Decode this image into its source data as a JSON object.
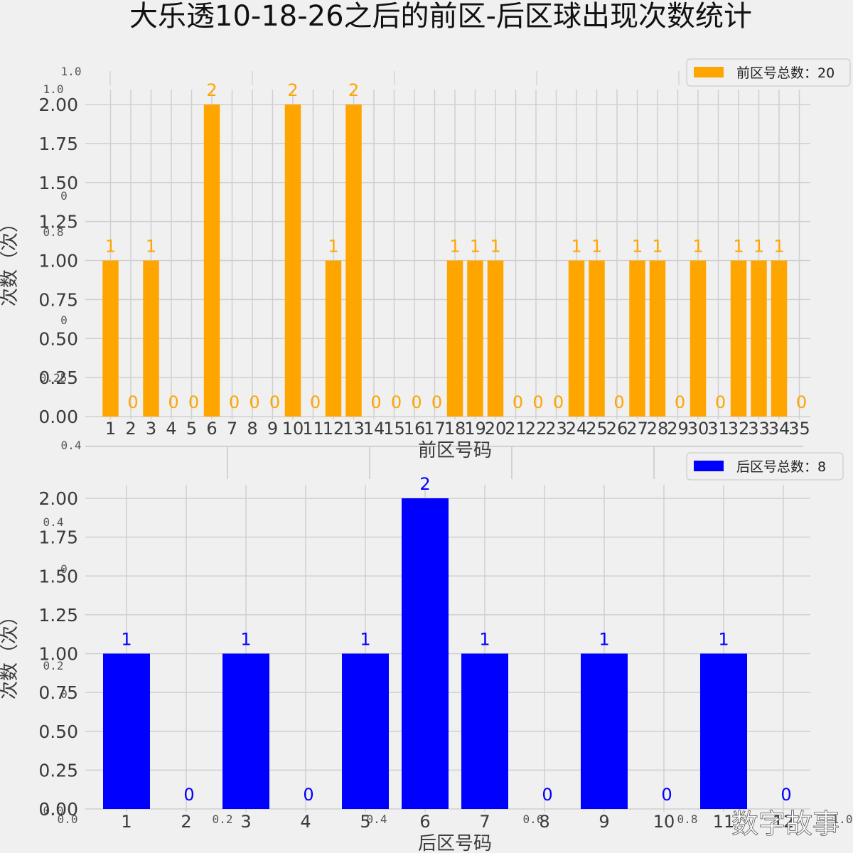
{
  "title": "大乐透10-18-26之后的前区-后区球出现次数统计",
  "watermark": "数字故事",
  "ghost_ticks": {
    "top": [
      "1.0",
      "1.0",
      "0",
      "0.8",
      "0",
      "0.25",
      "0.4"
    ],
    "bottom": [
      "0.4",
      "0",
      "0.2",
      "0",
      "0.0",
      "0.0",
      "0.2",
      "0.4",
      "0.6",
      "0.8",
      "1.0"
    ]
  },
  "chart_data": [
    {
      "type": "bar",
      "color": "#FFA500",
      "xlabel": "前区号码",
      "ylabel": "次数（次）",
      "ylim": [
        0,
        2.0
      ],
      "yticks": [
        "0.00",
        "0.25",
        "0.50",
        "0.75",
        "1.00",
        "1.25",
        "1.50",
        "1.75",
        "2.00"
      ],
      "legend": "前区号总数：20",
      "legend_position": "top-right",
      "grid": true,
      "categories": [
        "1",
        "2",
        "3",
        "4",
        "5",
        "6",
        "7",
        "8",
        "9",
        "10",
        "11",
        "12",
        "13",
        "14",
        "15",
        "16",
        "17",
        "18",
        "19",
        "20",
        "21",
        "22",
        "23",
        "24",
        "25",
        "26",
        "27",
        "28",
        "29",
        "30",
        "31",
        "32",
        "33",
        "34",
        "35"
      ],
      "values": [
        1,
        0,
        1,
        0,
        0,
        2,
        0,
        0,
        0,
        2,
        0,
        1,
        2,
        0,
        0,
        0,
        0,
        1,
        1,
        1,
        0,
        0,
        0,
        1,
        1,
        0,
        1,
        1,
        0,
        1,
        0,
        1,
        1,
        1,
        0
      ],
      "data_labels": [
        "1",
        "0",
        "1",
        "0",
        "0",
        "2",
        "0",
        "0",
        "0",
        "2",
        "0",
        "1",
        "2",
        "0",
        "0",
        "0",
        "0",
        "1",
        "1",
        "1",
        "0",
        "0",
        "0",
        "1",
        "1",
        "0",
        "1",
        "1",
        "0",
        "1",
        "0",
        "1",
        "1",
        "1",
        "0"
      ]
    },
    {
      "type": "bar",
      "color": "#0000FF",
      "xlabel": "后区号码",
      "ylabel": "次数（次）",
      "ylim": [
        0,
        2.0
      ],
      "yticks": [
        "0.00",
        "0.25",
        "0.50",
        "0.75",
        "1.00",
        "1.25",
        "1.50",
        "1.75",
        "2.00"
      ],
      "legend": "后区号总数：8",
      "legend_position": "top-right",
      "grid": true,
      "categories": [
        "1",
        "2",
        "3",
        "4",
        "5",
        "6",
        "7",
        "8",
        "9",
        "10",
        "11",
        "12"
      ],
      "values": [
        1,
        0,
        1,
        0,
        1,
        2,
        1,
        0,
        1,
        0,
        1,
        0
      ],
      "data_labels": [
        "1",
        "0",
        "1",
        "0",
        "1",
        "2",
        "1",
        "0",
        "1",
        "0",
        "1",
        "0"
      ]
    }
  ]
}
